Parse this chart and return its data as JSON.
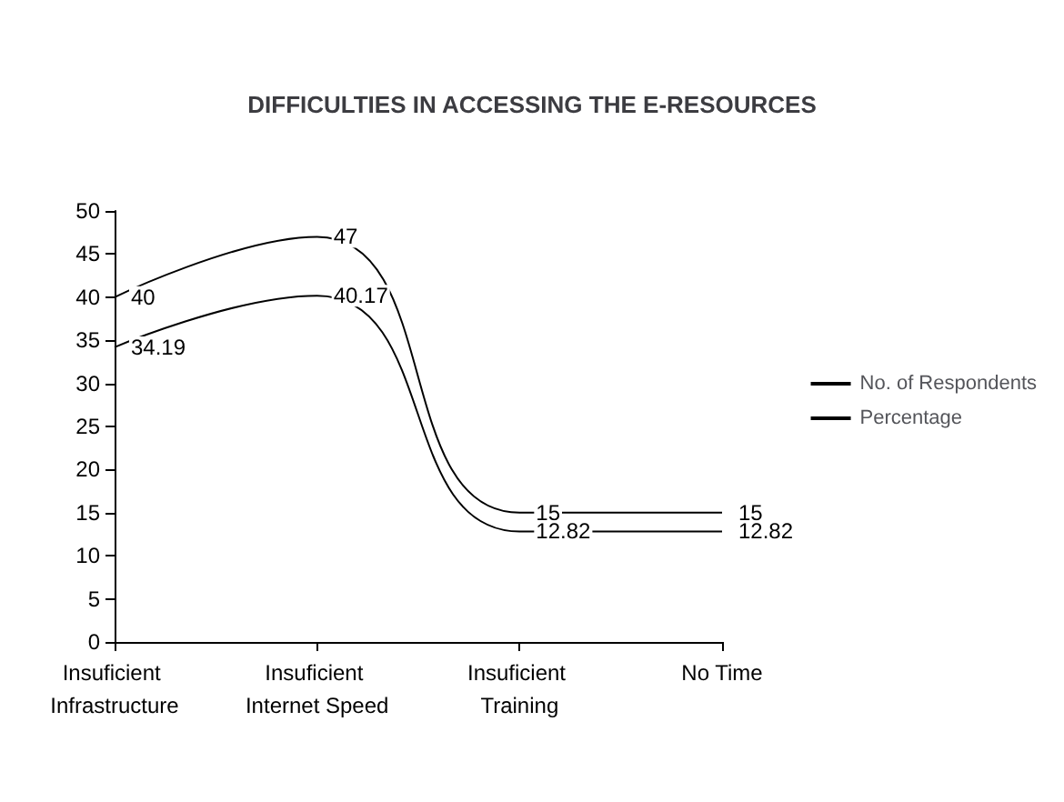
{
  "chart_data": {
    "type": "line",
    "title": "DIFFICULTIES IN ACCESSING THE E-RESOURCES",
    "categories": [
      "Insuficient Infrastructure",
      "Insuficient Internet Speed",
      "Insuficient Training",
      "No Time"
    ],
    "series": [
      {
        "name": "No. of Respondents",
        "color": "#000000",
        "values": [
          40,
          47,
          15,
          15
        ]
      },
      {
        "name": "Percentage",
        "color": "#000000",
        "values": [
          34.19,
          40.17,
          12.82,
          12.82
        ]
      }
    ],
    "ylim": [
      0,
      50
    ],
    "yticks": [
      0,
      5,
      10,
      15,
      20,
      25,
      30,
      35,
      40,
      45,
      50
    ],
    "grid": false,
    "legend": "right",
    "marker": "none",
    "line_style": "solid",
    "data_labels": true
  }
}
